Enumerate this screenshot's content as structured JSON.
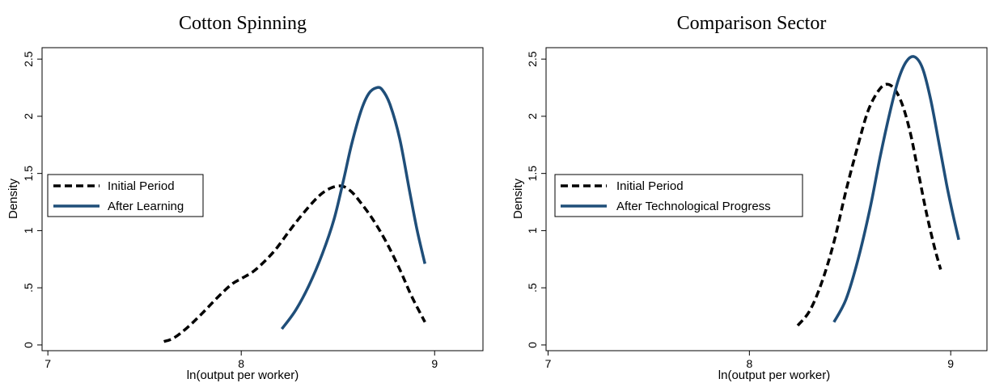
{
  "chart_data": [
    {
      "type": "line",
      "title": "Cotton Spinning",
      "xlabel": "ln(output per worker)",
      "ylabel": "Density",
      "xlim": [
        6.97,
        9.25
      ],
      "ylim": [
        -0.05,
        2.6
      ],
      "xticks": [
        {
          "v": 7,
          "label": "7"
        },
        {
          "v": 8,
          "label": "8"
        },
        {
          "v": 9,
          "label": "9"
        }
      ],
      "yticks": [
        {
          "v": 0,
          "label": "0"
        },
        {
          "v": 0.5,
          "label": ".5"
        },
        {
          "v": 1,
          "label": "1"
        },
        {
          "v": 1.5,
          "label": "1.5"
        },
        {
          "v": 2,
          "label": "2"
        },
        {
          "v": 2.5,
          "label": "2.5"
        }
      ],
      "legend": "left",
      "series": [
        {
          "name": "Initial Period",
          "style": "dashed",
          "color": "#000000",
          "x": [
            7.6,
            7.65,
            7.72,
            7.8,
            7.88,
            7.95,
            8.0,
            8.06,
            8.12,
            8.18,
            8.25,
            8.32,
            8.4,
            8.46,
            8.52,
            8.57,
            8.62,
            8.68,
            8.75,
            8.82,
            8.88,
            8.95
          ],
          "y": [
            0.03,
            0.06,
            0.15,
            0.28,
            0.42,
            0.53,
            0.58,
            0.64,
            0.73,
            0.84,
            1.0,
            1.15,
            1.3,
            1.37,
            1.39,
            1.34,
            1.24,
            1.1,
            0.9,
            0.66,
            0.43,
            0.2
          ]
        },
        {
          "name": "After Learning",
          "style": "solid",
          "color": "#1f4e79",
          "x": [
            8.21,
            8.28,
            8.35,
            8.42,
            8.48,
            8.53,
            8.57,
            8.62,
            8.66,
            8.7,
            8.73,
            8.77,
            8.82,
            8.87,
            8.91,
            8.95
          ],
          "y": [
            0.14,
            0.3,
            0.52,
            0.8,
            1.1,
            1.45,
            1.75,
            2.05,
            2.2,
            2.25,
            2.23,
            2.1,
            1.8,
            1.35,
            1.0,
            0.71
          ]
        }
      ]
    },
    {
      "type": "line",
      "title": "Comparison Sector",
      "xlabel": "ln(output per worker)",
      "ylabel": "Density",
      "xlim": [
        6.99,
        9.18
      ],
      "ylim": [
        -0.05,
        2.6
      ],
      "xticks": [
        {
          "v": 7,
          "label": "7"
        },
        {
          "v": 8,
          "label": "8"
        },
        {
          "v": 9,
          "label": "9"
        }
      ],
      "yticks": [
        {
          "v": 0,
          "label": "0"
        },
        {
          "v": 0.5,
          "label": ".5"
        },
        {
          "v": 1,
          "label": "1"
        },
        {
          "v": 1.5,
          "label": "1.5"
        },
        {
          "v": 2,
          "label": "2"
        },
        {
          "v": 2.5,
          "label": "2.5"
        }
      ],
      "legend": "left",
      "series": [
        {
          "name": "Initial Period",
          "style": "dashed",
          "color": "#000000",
          "x": [
            8.24,
            8.3,
            8.36,
            8.42,
            8.48,
            8.54,
            8.59,
            8.64,
            8.68,
            8.72,
            8.76,
            8.8,
            8.84,
            8.88,
            8.92,
            8.95
          ],
          "y": [
            0.17,
            0.3,
            0.55,
            0.9,
            1.35,
            1.75,
            2.05,
            2.22,
            2.28,
            2.24,
            2.1,
            1.85,
            1.5,
            1.15,
            0.85,
            0.66
          ]
        },
        {
          "name": "After Technological Progress",
          "style": "solid",
          "color": "#1f4e79",
          "x": [
            8.42,
            8.48,
            8.54,
            8.6,
            8.65,
            8.7,
            8.74,
            8.78,
            8.82,
            8.86,
            8.9,
            8.94,
            8.98,
            9.01,
            9.04
          ],
          "y": [
            0.2,
            0.4,
            0.75,
            1.2,
            1.65,
            2.05,
            2.32,
            2.48,
            2.52,
            2.42,
            2.15,
            1.78,
            1.4,
            1.15,
            0.92
          ]
        }
      ]
    }
  ]
}
